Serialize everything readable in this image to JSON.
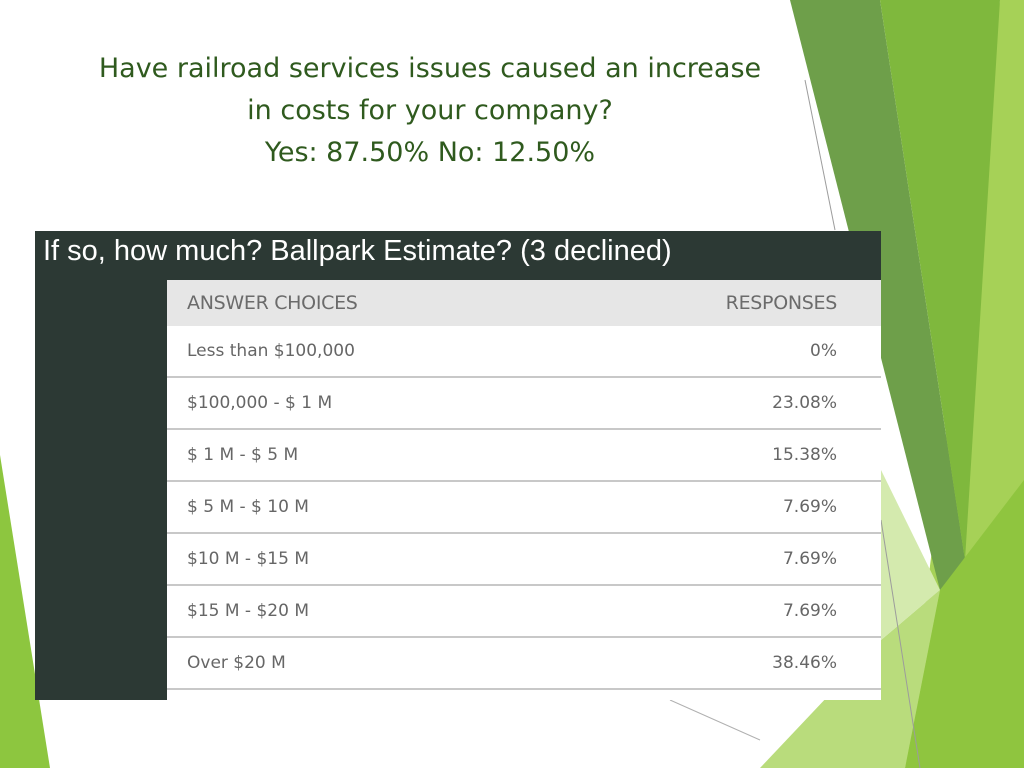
{
  "title": {
    "line1": "Have railroad services issues caused an increase",
    "line2": "in costs for your company?",
    "line3": "Yes: 87.50%  No: 12.50%"
  },
  "panel": {
    "heading": "If so, how much? Ballpark Estimate? (3 declined)"
  },
  "table": {
    "headers": {
      "choice": "ANSWER CHOICES",
      "responses": "RESPONSES"
    },
    "rows": [
      {
        "choice": "Less than $100,000",
        "response": "0%"
      },
      {
        "choice": "$100,000 - $ 1 M",
        "response": "23.08%"
      },
      {
        "choice": "$ 1 M - $ 5 M",
        "response": "15.38%"
      },
      {
        "choice": "$ 5 M - $ 10 M",
        "response": "7.69%"
      },
      {
        "choice": "$10 M - $15 M",
        "response": "7.69%"
      },
      {
        "choice": "$15 M -  $20 M",
        "response": "7.69%"
      },
      {
        "choice": "Over $20 M",
        "response": "38.46%"
      }
    ]
  },
  "colors": {
    "title_text": "#2f5a1e",
    "panel_bg": "#2c3934",
    "accent_green_dark": "#5f9b2e",
    "accent_green_light": "#8dc63f"
  }
}
